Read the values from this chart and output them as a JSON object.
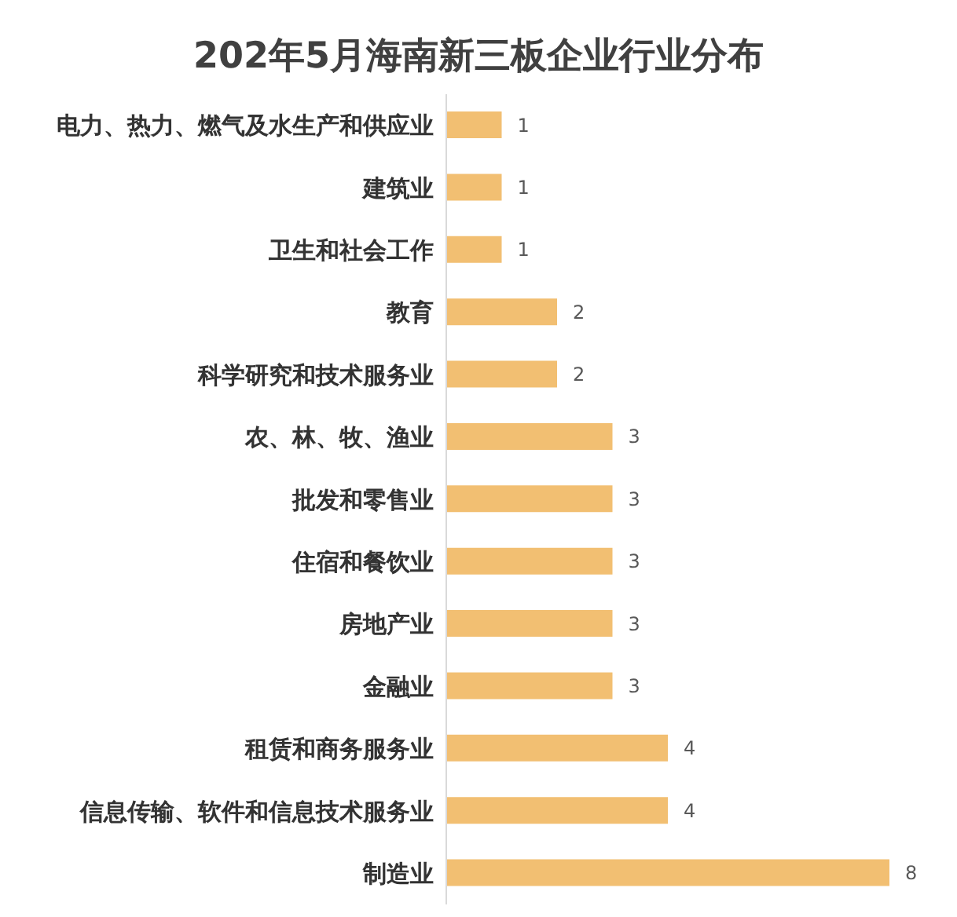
{
  "chart_data": {
    "type": "bar",
    "orientation": "horizontal",
    "title": "202年5月海南新三板企业行业分布",
    "categories": [
      "电力、热力、燃气及水生产和供应业",
      "建筑业",
      "卫生和社会工作",
      "教育",
      "科学研究和技术服务业",
      "农、林、牧、渔业",
      "批发和零售业",
      "住宿和餐饮业",
      "房地产业",
      "金融业",
      "租赁和商务服务业",
      "信息传输、软件和信息技术服务业",
      "制造业"
    ],
    "values": [
      1,
      1,
      1,
      2,
      2,
      3,
      3,
      3,
      3,
      3,
      4,
      4,
      8
    ],
    "color": "#f2bf72",
    "data_labels": true,
    "grid": false
  }
}
